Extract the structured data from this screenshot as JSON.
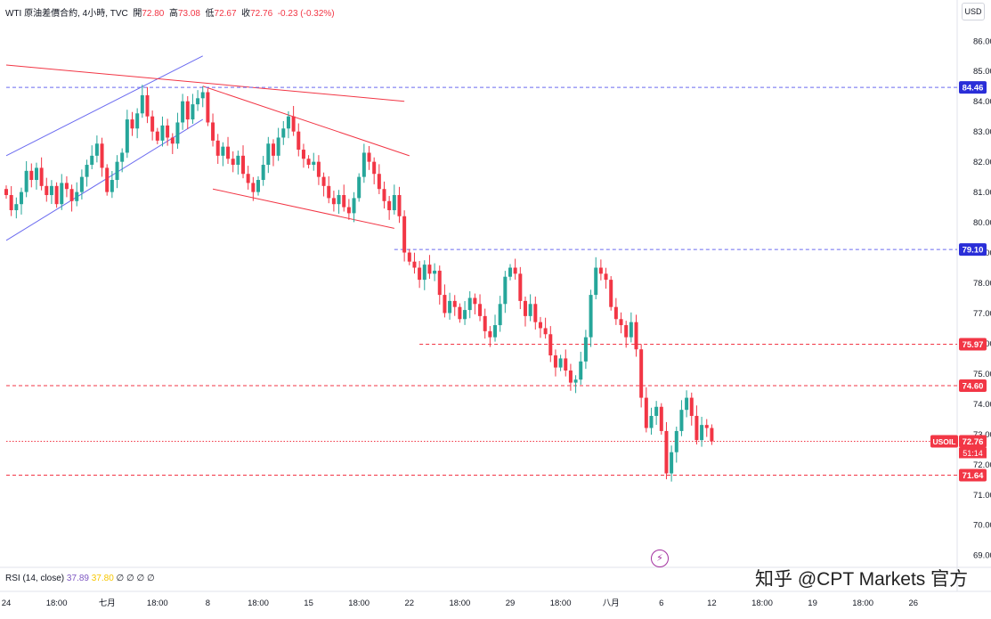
{
  "header": {
    "symbol_info": "WTI 原油差價合約, 4小時, TVC",
    "open_label": "開",
    "open": "72.80",
    "high_label": "高",
    "high": "73.08",
    "low_label": "低",
    "low": "72.67",
    "close_label": "收",
    "close": "72.76",
    "change": "-0.23 (-0.32%)"
  },
  "currency": "USD",
  "rsi": {
    "label": "RSI (14, close)",
    "value1": "37.89",
    "value2": "37.80",
    "extra": "∅ ∅ ∅ ∅"
  },
  "watermark": "知乎 @CPT Markets 官方",
  "colors": {
    "up": "#26a69a",
    "down": "#f23645",
    "trend_blue": "#6b6bf0",
    "trend_red": "#f23645"
  },
  "chart_data": {
    "type": "candlestick",
    "y_axis": {
      "ylim": [
        68.8,
        86.7
      ],
      "ticks": [
        "86.00",
        "85.00",
        "84.00",
        "83.00",
        "82.00",
        "81.00",
        "80.00",
        "79.00",
        "78.00",
        "77.00",
        "76.00",
        "75.00",
        "74.00",
        "73.00",
        "72.00",
        "71.00",
        "70.00",
        "69.00"
      ]
    },
    "x_axis": {
      "ticks": [
        {
          "label": "24",
          "i": 0
        },
        {
          "label": "18:00",
          "i": 10
        },
        {
          "label": "七月",
          "i": 20
        },
        {
          "label": "18:00",
          "i": 30
        },
        {
          "label": "8",
          "i": 40
        },
        {
          "label": "18:00",
          "i": 50
        },
        {
          "label": "15",
          "i": 60
        },
        {
          "label": "18:00",
          "i": 70
        },
        {
          "label": "22",
          "i": 80
        },
        {
          "label": "18:00",
          "i": 90
        },
        {
          "label": "29",
          "i": 100
        },
        {
          "label": "18:00",
          "i": 110
        },
        {
          "label": "八月",
          "i": 120
        },
        {
          "label": "6",
          "i": 130
        },
        {
          "label": "12",
          "i": 140
        },
        {
          "label": "18:00",
          "i": 150
        },
        {
          "label": "19",
          "i": 160
        },
        {
          "label": "18:00",
          "i": 170
        },
        {
          "label": "26",
          "i": 180
        }
      ]
    },
    "closes": [
      80.9,
      80.4,
      80.6,
      81.0,
      81.7,
      81.4,
      81.8,
      81.2,
      80.9,
      81.2,
      80.6,
      81.3,
      81.1,
      80.7,
      81.0,
      81.5,
      81.9,
      82.2,
      82.6,
      81.8,
      81.0,
      81.4,
      82.0,
      82.3,
      83.4,
      83.1,
      83.6,
      84.2,
      83.5,
      83.0,
      82.7,
      83.2,
      82.8,
      82.6,
      83.3,
      84.0,
      83.4,
      83.9,
      84.1,
      84.3,
      83.3,
      82.7,
      82.2,
      82.5,
      82.1,
      81.9,
      82.2,
      81.6,
      81.3,
      81.0,
      81.4,
      81.9,
      82.6,
      82.2,
      82.8,
      83.1,
      83.5,
      83.0,
      82.4,
      82.1,
      81.9,
      82.0,
      81.5,
      81.2,
      80.8,
      80.6,
      80.9,
      80.5,
      80.3,
      80.8,
      81.5,
      82.3,
      82.0,
      81.6,
      81.1,
      80.7,
      80.4,
      80.9,
      80.2,
      79.0,
      78.7,
      78.5,
      78.1,
      78.6,
      78.3,
      78.4,
      77.6,
      77.0,
      77.4,
      77.2,
      76.8,
      77.1,
      77.5,
      77.3,
      76.9,
      76.4,
      76.2,
      76.6,
      77.3,
      78.2,
      78.5,
      78.3,
      77.4,
      76.9,
      77.3,
      76.7,
      76.5,
      76.3,
      75.6,
      75.2,
      75.5,
      75.1,
      74.7,
      74.8,
      75.4,
      76.2,
      77.6,
      78.5,
      78.3,
      78.1,
      77.2,
      76.8,
      76.6,
      76.2,
      76.7,
      75.8,
      74.2,
      73.2,
      73.6,
      73.9,
      73.1,
      71.7,
      72.4,
      73.1,
      73.8,
      74.2,
      73.6,
      72.8,
      73.3,
      73.2,
      72.76
    ],
    "levels": [
      {
        "value": 84.46,
        "label": "84.46",
        "style": "blue-dash",
        "from_i": 0
      },
      {
        "value": 79.1,
        "label": "79.10",
        "style": "blue-dash",
        "from_i": 77
      },
      {
        "value": 75.97,
        "label": "75.97",
        "style": "red-dash",
        "from_i": 82
      },
      {
        "value": 74.6,
        "label": "74.60",
        "style": "red-dash",
        "from_i": 0
      },
      {
        "value": 72.76,
        "label": "72.76",
        "style": "red-dot",
        "from_i": 0,
        "tag": "USOIL",
        "countdown": "51:14"
      },
      {
        "value": 71.64,
        "label": "71.64",
        "style": "red-dash",
        "from_i": 0
      }
    ],
    "trendlines": [
      {
        "color": "blue",
        "from": [
          0,
          82.2
        ],
        "to": [
          39,
          85.5
        ]
      },
      {
        "color": "blue",
        "from": [
          0,
          79.4
        ],
        "to": [
          39,
          83.4
        ]
      },
      {
        "color": "red",
        "from": [
          0,
          85.2
        ],
        "to": [
          79,
          84.0
        ]
      },
      {
        "color": "red",
        "from": [
          39,
          84.5
        ],
        "to": [
          80,
          82.2
        ]
      },
      {
        "color": "red",
        "from": [
          41,
          81.1
        ],
        "to": [
          77,
          79.8
        ]
      }
    ]
  }
}
